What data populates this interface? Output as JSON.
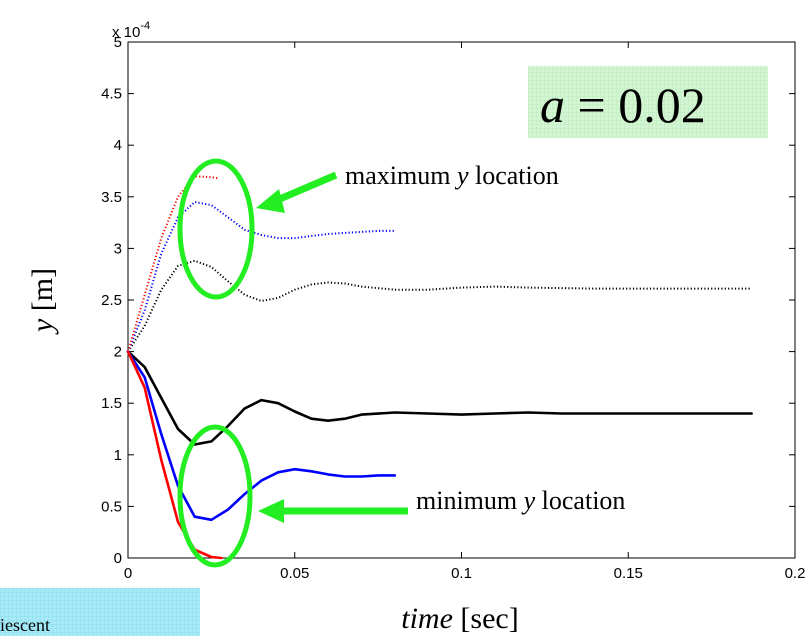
{
  "chart_data": {
    "type": "line",
    "title": "",
    "xlabel": {
      "italic": "time",
      "unit": "[sec]"
    },
    "ylabel": {
      "italic": "y",
      "unit": "[m]"
    },
    "xlim": [
      0,
      0.2
    ],
    "ylim": [
      0,
      5
    ],
    "y_exponent_label": "x 10",
    "y_exponent_power": "-4",
    "xticks": [
      0,
      0.05,
      0.1,
      0.15,
      0.2
    ],
    "xtick_labels": [
      "0",
      "0.05",
      "0.1",
      "0.15",
      "0.2"
    ],
    "yticks": [
      0,
      0.5,
      1,
      1.5,
      2,
      2.5,
      3,
      3.5,
      4,
      4.5,
      5
    ],
    "ytick_labels": [
      "0",
      "0.5",
      "1",
      "1.5",
      "2",
      "2.5",
      "3",
      "3.5",
      "4",
      "4.5",
      "5"
    ],
    "grid": false,
    "parameter_box": {
      "lhs": "a",
      "eq": "=",
      "rhs": "0.02"
    },
    "annotations": [
      {
        "prefix": "maximum ",
        "italic": "y",
        "suffix": " location"
      },
      {
        "prefix": "minimum ",
        "italic": "y",
        "suffix": " location"
      }
    ],
    "footer_fragment": "iescent",
    "series": [
      {
        "style": "solid",
        "color": "#000000",
        "x": [
          0,
          0.005,
          0.01,
          0.015,
          0.02,
          0.025,
          0.03,
          0.035,
          0.04,
          0.045,
          0.05,
          0.055,
          0.06,
          0.065,
          0.07,
          0.08,
          0.09,
          0.1,
          0.11,
          0.12,
          0.13,
          0.15,
          0.17,
          0.187
        ],
        "y": [
          2.0,
          1.85,
          1.55,
          1.25,
          1.1,
          1.13,
          1.28,
          1.45,
          1.53,
          1.5,
          1.42,
          1.35,
          1.33,
          1.35,
          1.39,
          1.41,
          1.4,
          1.39,
          1.4,
          1.41,
          1.4,
          1.4,
          1.4,
          1.4
        ]
      },
      {
        "style": "solid",
        "color": "#0000ff",
        "x": [
          0,
          0.005,
          0.01,
          0.015,
          0.02,
          0.025,
          0.03,
          0.035,
          0.04,
          0.045,
          0.05,
          0.055,
          0.06,
          0.065,
          0.07,
          0.075,
          0.08
        ],
        "y": [
          2.0,
          1.75,
          1.2,
          0.7,
          0.4,
          0.37,
          0.47,
          0.62,
          0.75,
          0.83,
          0.86,
          0.84,
          0.81,
          0.79,
          0.79,
          0.8,
          0.8
        ]
      },
      {
        "style": "solid",
        "color": "#ff0000",
        "x": [
          0,
          0.005,
          0.01,
          0.015,
          0.02,
          0.025,
          0.028
        ],
        "y": [
          2.0,
          1.65,
          0.95,
          0.35,
          0.08,
          0.01,
          0.0
        ]
      },
      {
        "style": "dotted",
        "color": "#000000",
        "x": [
          0,
          0.005,
          0.01,
          0.015,
          0.02,
          0.025,
          0.03,
          0.035,
          0.04,
          0.045,
          0.05,
          0.055,
          0.06,
          0.065,
          0.07,
          0.08,
          0.09,
          0.1,
          0.11,
          0.12,
          0.14,
          0.16,
          0.187
        ],
        "y": [
          2.0,
          2.25,
          2.6,
          2.83,
          2.88,
          2.82,
          2.68,
          2.55,
          2.49,
          2.52,
          2.6,
          2.65,
          2.67,
          2.66,
          2.63,
          2.6,
          2.6,
          2.62,
          2.63,
          2.62,
          2.61,
          2.61,
          2.61
        ]
      },
      {
        "style": "dotted",
        "color": "#0000ff",
        "x": [
          0,
          0.005,
          0.01,
          0.015,
          0.02,
          0.025,
          0.03,
          0.035,
          0.04,
          0.045,
          0.05,
          0.055,
          0.06,
          0.065,
          0.07,
          0.075,
          0.08
        ],
        "y": [
          2.0,
          2.4,
          2.95,
          3.3,
          3.45,
          3.42,
          3.3,
          3.18,
          3.13,
          3.1,
          3.1,
          3.12,
          3.14,
          3.15,
          3.16,
          3.17,
          3.17
        ]
      },
      {
        "style": "dotted",
        "color": "#ff0000",
        "x": [
          0,
          0.005,
          0.01,
          0.015,
          0.02,
          0.025,
          0.027
        ],
        "y": [
          2.0,
          2.55,
          3.1,
          3.5,
          3.7,
          3.69,
          3.68
        ]
      }
    ]
  },
  "colors": {
    "highlight": "#22ee22",
    "param_box_bg": "#ccf5cc",
    "footer_bg": "#9fe7f5"
  }
}
